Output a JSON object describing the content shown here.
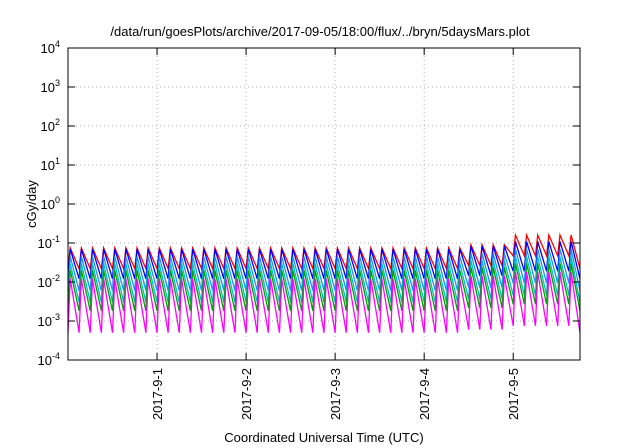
{
  "chart_data": {
    "type": "line",
    "title": "/data/run/goesPlots/archive/2017-09-05/18:00/flux/../bryn/5daysMars.plot",
    "xlabel": "Coordinated Universal Time (UTC)",
    "ylabel": "cGy/day",
    "y_scale": "log",
    "ylim_exponent": [
      -4,
      4
    ],
    "y_ticks": [
      {
        "base": "10",
        "exp": "-4"
      },
      {
        "base": "10",
        "exp": "-3"
      },
      {
        "base": "10",
        "exp": "-2"
      },
      {
        "base": "10",
        "exp": "-1"
      },
      {
        "base": "10",
        "exp": "0"
      },
      {
        "base": "10",
        "exp": "1"
      },
      {
        "base": "10",
        "exp": "2"
      },
      {
        "base": "10",
        "exp": "3"
      },
      {
        "base": "10",
        "exp": "4"
      }
    ],
    "xlim": [
      "2017-08-31T00:00",
      "2017-09-05T18:00"
    ],
    "x_ticks": [
      "2017-9-1",
      "2017-9-2",
      "2017-9-3",
      "2017-9-4",
      "2017-9-5"
    ],
    "x_tick_dates": [
      "2017-09-01T00:00",
      "2017-09-02T00:00",
      "2017-09-03T00:00",
      "2017-09-04T00:00",
      "2017-09-05T00:00"
    ],
    "grid": true,
    "sawtooth_period_hours": 3,
    "series": [
      {
        "color": "#ff0000",
        "peak": 0.075,
        "trough": 0.022,
        "peak_after_sep5": 0.16
      },
      {
        "color": "#0000ff",
        "peak": 0.07,
        "trough": 0.012,
        "peak_after_sep5": 0.11
      },
      {
        "color": "#1e90ff",
        "peak": 0.045,
        "trough": 0.006,
        "peak_after_sep5": 0.07
      },
      {
        "color": "#00bfbf",
        "peak": 0.03,
        "trough": 0.003,
        "peak_after_sep5": 0.045
      },
      {
        "color": "#00a000",
        "peak": 0.02,
        "trough": 0.0018,
        "peak_after_sep5": 0.03
      },
      {
        "color": "#ff00ff",
        "peak": 0.012,
        "trough": 0.0005,
        "peak_after_sep5": 0.018
      }
    ]
  }
}
